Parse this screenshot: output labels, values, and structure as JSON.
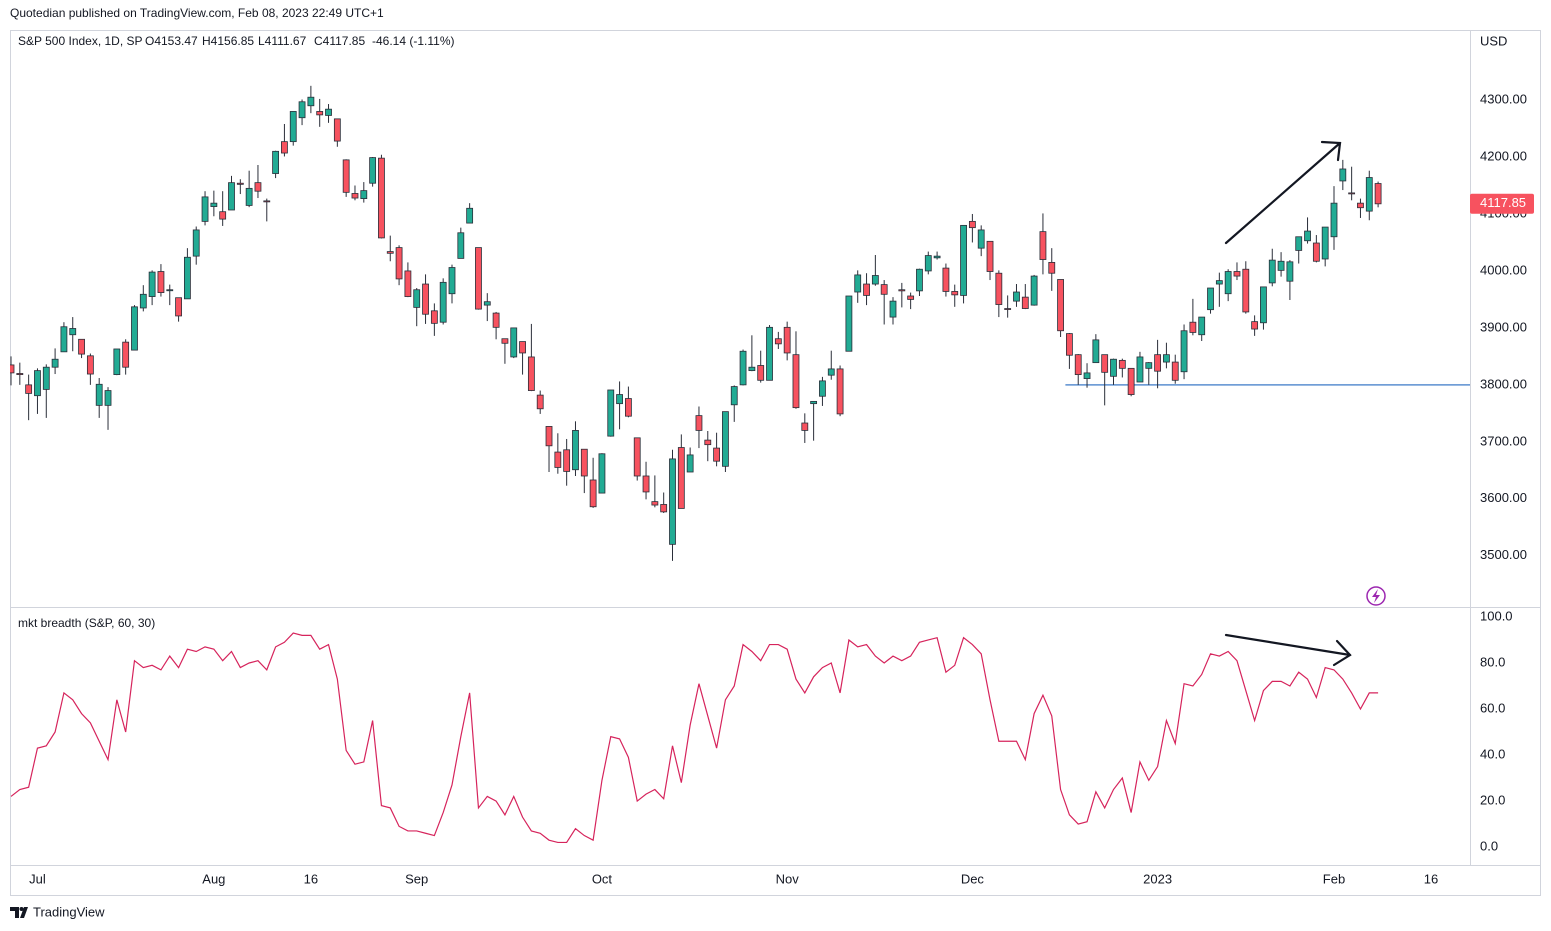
{
  "attribution": "Quotedian published on TradingView.com, Feb 08, 2023 22:49 UTC+1",
  "footer": "TradingView",
  "chart_data": [
    {
      "type": "candlestick",
      "title": "S&P 500 Index, 1D, SP",
      "legend_values": [
        "O4153.47",
        "H4156.85",
        "L4111.67",
        "C4117.85",
        "-46.14 (-1.11%)"
      ],
      "y_label": "USD",
      "last_price_label": "4117.85",
      "up_color": "#22ab94",
      "down_color": "#f7525f",
      "open": [
        3835,
        3820,
        3800,
        3781,
        3792,
        3831,
        3858,
        3888,
        3880,
        3851,
        3764,
        3764,
        3818,
        3875,
        3861,
        3935,
        3955,
        3999,
        3966,
        3953,
        3951,
        4026,
        4087,
        4113,
        4104,
        4107,
        4154,
        4115,
        4155,
        4123,
        4171,
        4227,
        4227,
        4269,
        4290,
        4280,
        4273,
        4267,
        4195,
        4136,
        4127,
        4154,
        4198,
        4034,
        4041,
        4000,
        3936,
        3977,
        3930,
        3910,
        3960,
        4022,
        4084,
        4041,
        3940,
        3926,
        3881,
        3849,
        3876,
        3849,
        3782,
        3727,
        3682,
        3686,
        3651,
        3687,
        3633,
        3610,
        3710,
        3767,
        3776,
        3707,
        3640,
        3595,
        3590,
        3520,
        3690,
        3647,
        3746,
        3703,
        3689,
        3657,
        3765,
        3800,
        3825,
        3834,
        3808,
        3881,
        3901,
        3853,
        3733,
        3767,
        3780,
        3817,
        3828,
        3859,
        3963,
        3977,
        3977,
        3976,
        3919,
        3967,
        3956,
        3965,
        4000,
        4023,
        4005,
        3964,
        3957,
        4087,
        4040,
        4052,
        3996,
        3934,
        3947,
        3954,
        3940,
        4069,
        4015,
        3985,
        3890,
        3853,
        3811,
        3839,
        3853,
        3815,
        3843,
        3829,
        3805,
        3829,
        3853,
        3840,
        3840,
        3823,
        3910,
        3888,
        3932,
        3977,
        3960,
        3999,
        4003,
        3911,
        3909,
        3979,
        4001,
        3982,
        4036,
        4053,
        4049,
        4021,
        4060,
        4158,
        4137,
        4119,
        4105,
        4153.47,
        null,
        null,
        null,
        null,
        null,
        null,
        null,
        null,
        null,
        null
      ],
      "high": [
        3850,
        3839,
        3818,
        3829,
        3836,
        3864,
        3910,
        3919,
        3880,
        3855,
        3812,
        3796,
        3863,
        3880,
        3940,
        3975,
        4001,
        4012,
        3976,
        3953,
        4040,
        4078,
        4140,
        4141,
        4140,
        4167,
        4161,
        4176,
        4186,
        4127,
        4211,
        4258,
        4280,
        4301,
        4325,
        4302,
        4293,
        4267,
        4196,
        4150,
        4156,
        4200,
        4204,
        4062,
        4045,
        4015,
        3970,
        3994,
        3943,
        3987,
        4011,
        4076,
        4119,
        4041,
        3961,
        3928,
        3881,
        3900,
        3876,
        3907,
        3790,
        3727,
        3715,
        3705,
        3736,
        3687,
        3672,
        3680,
        3791,
        3806,
        3797,
        3707,
        3665,
        3641,
        3611,
        3686,
        3713,
        3690,
        3762,
        3719,
        3716,
        3753,
        3799,
        3862,
        3887,
        3860,
        3905,
        3893,
        3911,
        3894,
        3750,
        3771,
        3814,
        3860,
        3834,
        3956,
        4001,
        3996,
        4028,
        3984,
        3954,
        3979,
        3962,
        4004,
        4034,
        4034,
        4013,
        3976,
        4080,
        4100,
        4080,
        4052,
        4001,
        3957,
        3977,
        3977,
        3993,
        4101,
        4040,
        3985,
        3891,
        3854,
        3838,
        3889,
        3853,
        3846,
        3846,
        3829,
        3858,
        3840,
        3879,
        3874,
        3853,
        3906,
        3951,
        3919,
        3970,
        3997,
        4003,
        4015,
        4017,
        3922,
        3972,
        4039,
        4033,
        4019,
        4060,
        4094,
        4063,
        4077,
        4149,
        4195,
        4183,
        4127,
        4176,
        4156.85,
        null,
        null,
        null,
        null,
        null,
        null,
        null,
        null,
        null,
        null
      ],
      "low": [
        3799,
        3800,
        3738,
        3749,
        3742,
        3819,
        3858,
        3859,
        3847,
        3800,
        3742,
        3721,
        3817,
        3818,
        3861,
        3929,
        3940,
        3955,
        3940,
        3911,
        3951,
        4011,
        4080,
        4096,
        4079,
        4107,
        4135,
        4112,
        4128,
        4087,
        4163,
        4201,
        4220,
        4256,
        4277,
        4253,
        4260,
        4218,
        4130,
        4124,
        4120,
        4148,
        4057,
        4017,
        3975,
        3954,
        3903,
        3907,
        3886,
        3906,
        3943,
        4022,
        4084,
        3932,
        3912,
        3880,
        3837,
        3847,
        3818,
        3789,
        3749,
        3647,
        3644,
        3623,
        3640,
        3610,
        3584,
        3610,
        3709,
        3722,
        3743,
        3632,
        3599,
        3585,
        3575,
        3491,
        3583,
        3647,
        3689,
        3666,
        3657,
        3647,
        3735,
        3799,
        3824,
        3804,
        3808,
        3863,
        3843,
        3758,
        3698,
        3702,
        3763,
        3809,
        3745,
        3859,
        3944,
        3940,
        3974,
        3906,
        3906,
        3936,
        3933,
        3956,
        3994,
        4020,
        3955,
        3937,
        3943,
        4050,
        4026,
        3984,
        3919,
        3918,
        3937,
        3933,
        3939,
        3994,
        3965,
        3884,
        3828,
        3800,
        3795,
        3839,
        3764,
        3800,
        3813,
        3780,
        3805,
        3800,
        3794,
        3829,
        3802,
        3810,
        3887,
        3877,
        3925,
        3937,
        3947,
        3984,
        3925,
        3886,
        3897,
        3973,
        3990,
        3949,
        4013,
        4048,
        4015,
        4008,
        4037,
        4142,
        4124,
        4093,
        4089,
        4111.67,
        null,
        null,
        null,
        null,
        null,
        null,
        null,
        null,
        null,
        null
      ],
      "close": [
        3821,
        3818,
        3785,
        3825,
        3831,
        3845,
        3902,
        3899,
        3854,
        3819,
        3801,
        3790,
        3863,
        3831,
        3937,
        3959,
        3998,
        3962,
        3967,
        3921,
        4024,
        4072,
        4130,
        4119,
        4091,
        4155,
        4152,
        4145,
        4140,
        4122,
        4210,
        4207,
        4280,
        4297,
        4305,
        4274,
        4284,
        4228,
        4138,
        4128,
        4141,
        4199,
        4058,
        4031,
        3986,
        3955,
        3967,
        3924,
        3908,
        3980,
        4006,
        4067,
        4110,
        3933,
        3946,
        3901,
        3873,
        3900,
        3856,
        3790,
        3758,
        3693,
        3655,
        3648,
        3720,
        3640,
        3586,
        3679,
        3791,
        3783,
        3745,
        3640,
        3612,
        3589,
        3577,
        3670,
        3583,
        3677,
        3720,
        3695,
        3666,
        3753,
        3797,
        3859,
        3831,
        3808,
        3901,
        3872,
        3856,
        3760,
        3720,
        3771,
        3807,
        3828,
        3749,
        3956,
        3993,
        3957,
        3992,
        3959,
        3947,
        3965,
        3950,
        4003,
        4027,
        4026,
        3964,
        3958,
        4080,
        4076,
        4072,
        3999,
        3941,
        3933,
        3963,
        3934,
        3991,
        4020,
        3996,
        3895,
        3852,
        3818,
        3821,
        3879,
        3822,
        3845,
        3829,
        3783,
        3849,
        3839,
        3824,
        3853,
        3808,
        3895,
        3892,
        3919,
        3970,
        3983,
        3999,
        3991,
        3928,
        3898,
        3972,
        4019,
        4017,
        4016,
        4060,
        4070,
        4017,
        4077,
        4119,
        4179,
        4136,
        4111,
        4164,
        4117.85,
        null,
        null,
        null,
        null,
        null,
        null,
        null,
        null,
        null,
        null
      ],
      "ylim": [
        3410,
        4423
      ],
      "yticks": [
        {
          "value": 3500,
          "label": "3500.00"
        },
        {
          "value": 3600,
          "label": "3600.00"
        },
        {
          "value": 3700,
          "label": "3700.00"
        },
        {
          "value": 3800,
          "label": "3800.00"
        },
        {
          "value": 3900,
          "label": "3900.00"
        },
        {
          "value": 4000,
          "label": "4000.00"
        },
        {
          "value": 4100,
          "label": "4100.00"
        },
        {
          "value": 4200,
          "label": "4200.00"
        },
        {
          "value": 4300,
          "label": "4300.00"
        }
      ],
      "horizontal_line": 3800,
      "line_color": "#5b8fd0"
    },
    {
      "type": "line",
      "title": "mkt breadth (S&P, 60, 30)",
      "categories": [
        null,
        null,
        null,
        "Jul",
        null,
        null,
        null,
        null,
        null,
        null,
        null,
        null,
        null,
        null,
        null,
        null,
        null,
        null,
        null,
        null,
        null,
        null,
        null,
        "Aug",
        null,
        null,
        null,
        null,
        null,
        null,
        null,
        null,
        null,
        null,
        "16",
        null,
        null,
        null,
        null,
        null,
        null,
        null,
        null,
        null,
        null,
        null,
        "Sep",
        null,
        null,
        null,
        null,
        null,
        null,
        null,
        null,
        null,
        null,
        null,
        null,
        null,
        null,
        null,
        null,
        null,
        null,
        null,
        null,
        "Oct",
        null,
        null,
        null,
        null,
        null,
        null,
        null,
        null,
        null,
        null,
        null,
        null,
        null,
        null,
        null,
        null,
        null,
        null,
        null,
        null,
        "Nov",
        null,
        null,
        null,
        null,
        null,
        null,
        null,
        null,
        null,
        null,
        null,
        null,
        null,
        null,
        null,
        null,
        null,
        null,
        null,
        null,
        "Dec",
        null,
        null,
        null,
        null,
        null,
        null,
        null,
        null,
        null,
        null,
        null,
        null,
        null,
        null,
        null,
        null,
        null,
        null,
        null,
        null,
        "2023",
        null,
        null,
        null,
        null,
        null,
        null,
        null,
        null,
        null,
        null,
        null,
        null,
        null,
        null,
        null,
        null,
        null,
        null,
        null,
        "Feb",
        null,
        null,
        null,
        null,
        null,
        null,
        null,
        null,
        null,
        null,
        "16",
        null,
        null,
        null,
        null
      ],
      "values": [
        22,
        25,
        26,
        43,
        44,
        50,
        67,
        64,
        58,
        54,
        46,
        38,
        64,
        50,
        81,
        78,
        79,
        77,
        83,
        78,
        86,
        85,
        87,
        86,
        81,
        85,
        78,
        80,
        81,
        77,
        87,
        89,
        93,
        92,
        92,
        86,
        88,
        73,
        42,
        36,
        37,
        55,
        18,
        17,
        9,
        7,
        7,
        6,
        5,
        15,
        27,
        48,
        67,
        17,
        22,
        20,
        14,
        22,
        13,
        7,
        6,
        3,
        2,
        2,
        8,
        5,
        3,
        29,
        48,
        47,
        39,
        20,
        23,
        25,
        21,
        44,
        28,
        53,
        71,
        57,
        43,
        64,
        70,
        88,
        85,
        81,
        88,
        88,
        86,
        73,
        67,
        74,
        78,
        80,
        67,
        90,
        87,
        88,
        83,
        80,
        83,
        81,
        83,
        89,
        90,
        91,
        76,
        79,
        91,
        88,
        84,
        64,
        46,
        46,
        46,
        38,
        58,
        66,
        57,
        25,
        14,
        10,
        11,
        24,
        17,
        25,
        30,
        15,
        37,
        29,
        35,
        55,
        45,
        71,
        70,
        75,
        84,
        83,
        85,
        81,
        68,
        55,
        68,
        72,
        72,
        70,
        76,
        73,
        65,
        78,
        77,
        73,
        67,
        60,
        67,
        67,
        null,
        null,
        null,
        null,
        null,
        null,
        null,
        null,
        null,
        null
      ],
      "color": "#d6245c",
      "ylim": [
        -7.8,
        103.9
      ],
      "yticks": [
        {
          "value": 0,
          "label": "0.0"
        },
        {
          "value": 20,
          "label": "20.0"
        },
        {
          "value": 40,
          "label": "40.0"
        },
        {
          "value": 60,
          "label": "60.0"
        },
        {
          "value": 80,
          "label": "80.0"
        },
        {
          "value": 100,
          "label": "100.0"
        }
      ]
    }
  ]
}
